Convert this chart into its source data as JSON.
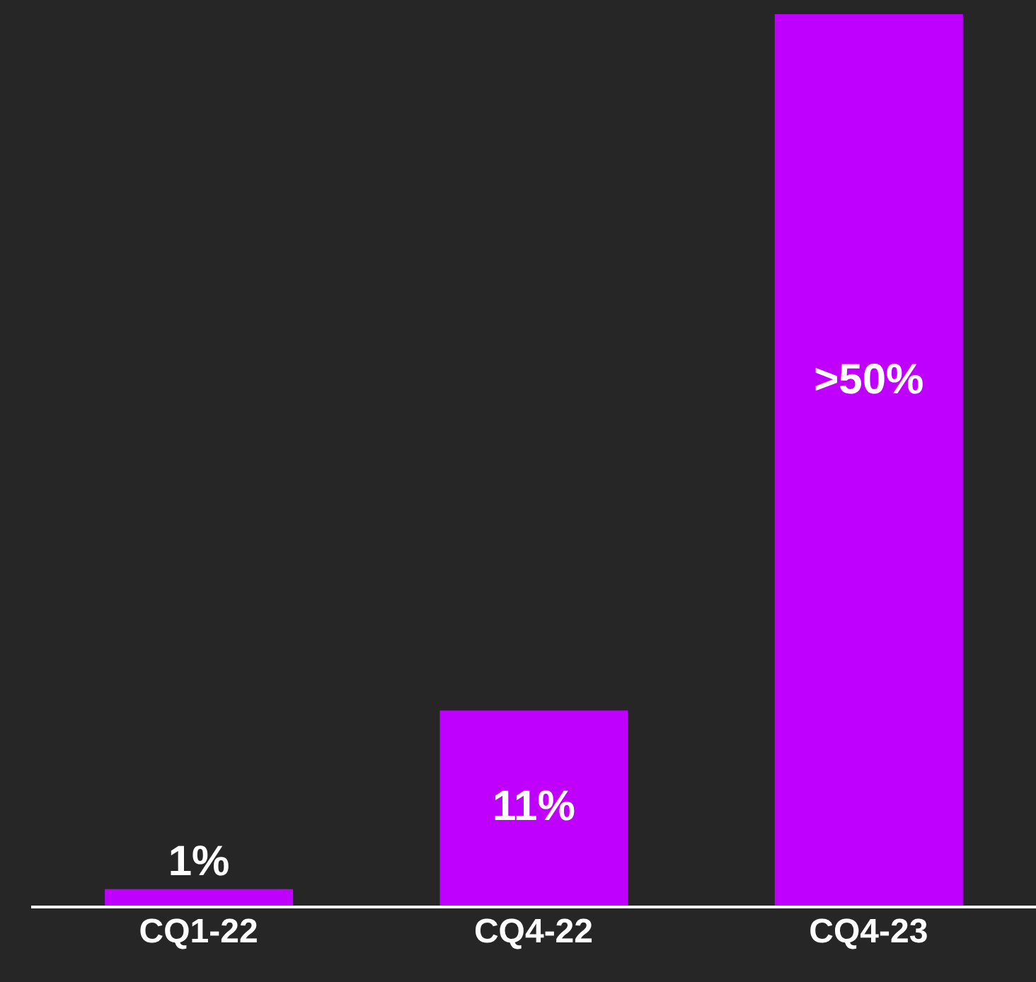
{
  "chart_data": {
    "type": "bar",
    "categories": [
      "CQ1-22",
      "CQ4-22",
      "CQ4-23"
    ],
    "values": [
      1,
      11,
      50
    ],
    "value_labels": [
      "1%",
      "11%",
      ">50%"
    ],
    "color": "#bf00ff"
  }
}
